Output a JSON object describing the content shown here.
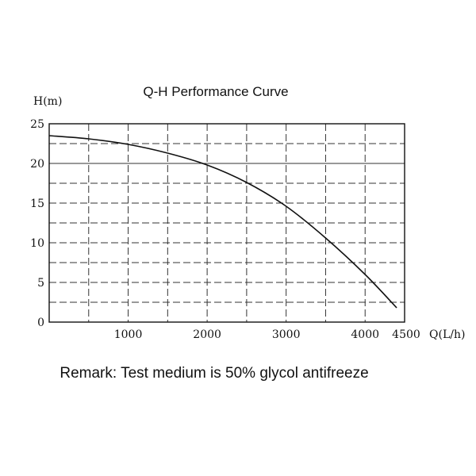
{
  "chart_data": {
    "type": "line",
    "title": "Q-H Performance Curve",
    "xlabel": "Q(L/h)",
    "ylabel": "H(m)",
    "xlim": [
      0,
      4500
    ],
    "ylim": [
      0,
      25
    ],
    "x_major_ticks": [
      1000,
      2000,
      3000,
      4000,
      4500
    ],
    "x_tick_labels": [
      "1000",
      "2000",
      "3000",
      "4000",
      "4500"
    ],
    "y_major_ticks": [
      0,
      5,
      10,
      15,
      20,
      25
    ],
    "y_tick_labels": [
      "0",
      "5",
      "10",
      "15",
      "20",
      "25"
    ],
    "x_minor_step": 500,
    "y_minor_step": 2.5,
    "grid": true,
    "series": [
      {
        "x": [
          0,
          500,
          1000,
          1500,
          2000,
          2500,
          3000,
          3500,
          4000,
          4400
        ],
        "y": [
          23.5,
          23.1,
          22.4,
          21.3,
          19.8,
          17.6,
          14.6,
          10.6,
          6.0,
          1.8
        ]
      }
    ]
  },
  "remark": "Remark: Test medium is 50% glycol antifreeze",
  "colors": {
    "line": "#111111",
    "grid": "#333333",
    "background": "#ffffff"
  }
}
